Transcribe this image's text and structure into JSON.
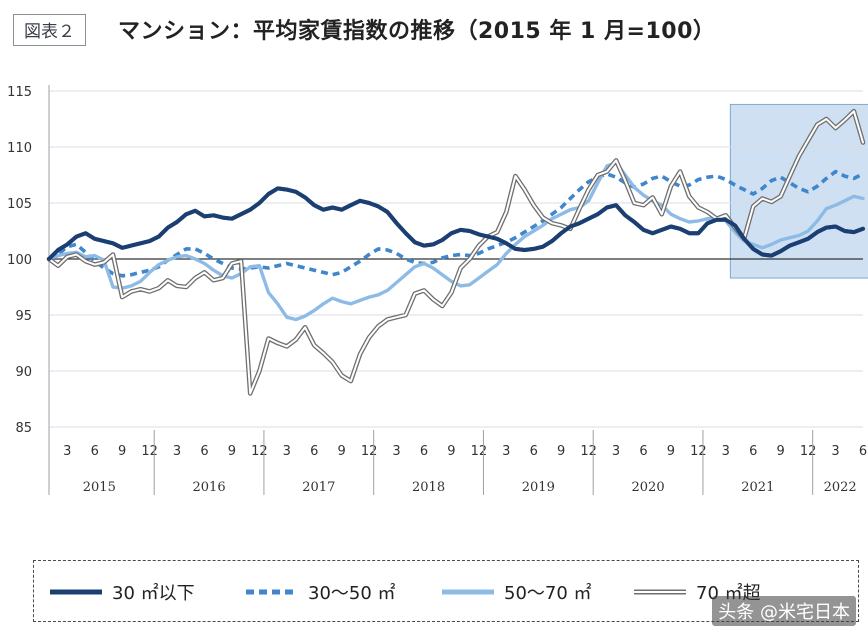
{
  "figure": {
    "label": "図表２",
    "title": "マンション：平均家賃指数の推移（2015 年 1 月=100）"
  },
  "watermark": "头条 @米宅日本",
  "chart_data": {
    "type": "line",
    "title": "マンション：平均家賃指数の推移（2015 年 1 月=100）",
    "xlabel": "",
    "ylabel": "",
    "ylim": [
      85,
      115
    ],
    "yticks": [
      "85",
      "90",
      "95",
      "100",
      "105",
      "110",
      "115"
    ],
    "baseline": 100,
    "x_start": "2015-01",
    "x_count": 90,
    "month_ticks": [
      {
        "index": 2,
        "label": "3"
      },
      {
        "index": 5,
        "label": "6"
      },
      {
        "index": 8,
        "label": "9"
      },
      {
        "index": 11,
        "label": "12"
      },
      {
        "index": 14,
        "label": "3"
      },
      {
        "index": 17,
        "label": "6"
      },
      {
        "index": 20,
        "label": "9"
      },
      {
        "index": 23,
        "label": "12"
      },
      {
        "index": 26,
        "label": "3"
      },
      {
        "index": 29,
        "label": "6"
      },
      {
        "index": 32,
        "label": "9"
      },
      {
        "index": 35,
        "label": "12"
      },
      {
        "index": 38,
        "label": "3"
      },
      {
        "index": 41,
        "label": "6"
      },
      {
        "index": 44,
        "label": "9"
      },
      {
        "index": 47,
        "label": "12"
      },
      {
        "index": 50,
        "label": "3"
      },
      {
        "index": 53,
        "label": "6"
      },
      {
        "index": 56,
        "label": "9"
      },
      {
        "index": 59,
        "label": "12"
      },
      {
        "index": 62,
        "label": "3"
      },
      {
        "index": 65,
        "label": "6"
      },
      {
        "index": 68,
        "label": "9"
      },
      {
        "index": 71,
        "label": "12"
      },
      {
        "index": 74,
        "label": "3"
      },
      {
        "index": 77,
        "label": "6"
      },
      {
        "index": 80,
        "label": "9"
      },
      {
        "index": 83,
        "label": "12"
      },
      {
        "index": 86,
        "label": "3"
      },
      {
        "index": 89,
        "label": "6"
      }
    ],
    "years": [
      {
        "label": "2015",
        "start": 0,
        "end": 11
      },
      {
        "label": "2016",
        "start": 12,
        "end": 23
      },
      {
        "label": "2017",
        "start": 24,
        "end": 35
      },
      {
        "label": "2018",
        "start": 36,
        "end": 47
      },
      {
        "label": "2019",
        "start": 48,
        "end": 59
      },
      {
        "label": "2020",
        "start": 60,
        "end": 71
      },
      {
        "label": "2021",
        "start": 72,
        "end": 83
      },
      {
        "label": "2022",
        "start": 84,
        "end": 89
      }
    ],
    "highlight_range": {
      "start": 75,
      "end": 90,
      "ymin": 98.3,
      "ymax": 113.8
    },
    "series": [
      {
        "name": "30 ㎡以下",
        "color": "#1b3f73",
        "style": "solid-thick",
        "values": [
          100.0,
          100.8,
          101.3,
          102.0,
          102.3,
          101.8,
          101.6,
          101.4,
          101.0,
          101.2,
          101.4,
          101.6,
          102.0,
          102.8,
          103.3,
          104.0,
          104.3,
          103.8,
          103.9,
          103.7,
          103.6,
          104.0,
          104.4,
          105.0,
          105.8,
          106.3,
          106.2,
          106.0,
          105.5,
          104.8,
          104.4,
          104.6,
          104.4,
          104.8,
          105.2,
          105.0,
          104.7,
          104.2,
          103.2,
          102.3,
          101.5,
          101.2,
          101.3,
          101.7,
          102.3,
          102.6,
          102.5,
          102.2,
          102.0,
          101.8,
          101.4,
          100.9,
          100.8,
          100.9,
          101.1,
          101.6,
          102.3,
          102.9,
          103.2,
          103.6,
          104.0,
          104.6,
          104.8,
          103.9,
          103.3,
          102.6,
          102.3,
          102.6,
          102.9,
          102.7,
          102.3,
          102.3,
          103.2,
          103.5,
          103.5,
          103.0,
          101.8,
          100.9,
          100.4,
          100.3,
          100.7,
          101.2,
          101.5,
          101.8,
          102.4,
          102.8,
          102.9,
          102.5,
          102.4,
          102.7
        ]
      },
      {
        "name": "30〜50 ㎡",
        "color": "#3f86cc",
        "style": "dashed",
        "values": [
          100.0,
          100.4,
          101.1,
          101.3,
          100.6,
          99.8,
          99.2,
          98.7,
          98.5,
          98.6,
          98.8,
          99.0,
          99.3,
          99.9,
          100.4,
          100.9,
          100.9,
          100.5,
          100.0,
          99.6,
          99.2,
          99.1,
          99.2,
          99.3,
          99.2,
          99.4,
          99.6,
          99.4,
          99.2,
          99.0,
          98.8,
          98.6,
          98.8,
          99.3,
          99.8,
          100.4,
          100.9,
          100.8,
          100.5,
          100.0,
          99.7,
          99.6,
          99.7,
          100.1,
          100.3,
          100.4,
          100.3,
          100.5,
          100.9,
          101.2,
          101.5,
          101.9,
          102.4,
          102.9,
          103.4,
          104.0,
          104.6,
          105.4,
          106.2,
          106.9,
          107.3,
          107.6,
          107.3,
          106.8,
          106.4,
          106.7,
          107.2,
          107.4,
          106.9,
          106.5,
          106.6,
          107.1,
          107.3,
          107.4,
          107.1,
          106.6,
          106.2,
          105.8,
          106.3,
          107.0,
          107.3,
          106.8,
          106.3,
          106.0,
          106.5,
          107.2,
          107.8,
          107.4,
          107.2,
          107.6
        ]
      },
      {
        "name": "50〜70 ㎡",
        "color": "#8dbbe6",
        "style": "solid-medium",
        "values": [
          100.0,
          100.3,
          100.5,
          100.6,
          100.2,
          100.3,
          99.9,
          97.5,
          97.4,
          97.6,
          98.0,
          98.8,
          99.5,
          99.9,
          100.2,
          100.3,
          100.0,
          99.6,
          99.0,
          98.5,
          98.3,
          98.7,
          99.3,
          99.4,
          97.0,
          96.0,
          94.8,
          94.6,
          94.9,
          95.4,
          96.0,
          96.5,
          96.2,
          96.0,
          96.3,
          96.6,
          96.8,
          97.2,
          97.9,
          98.6,
          99.3,
          99.6,
          99.2,
          98.6,
          98.0,
          97.6,
          97.7,
          98.3,
          98.9,
          99.5,
          100.5,
          101.3,
          102.0,
          102.5,
          103.0,
          103.6,
          104.0,
          104.4,
          104.6,
          105.2,
          106.8,
          108.3,
          108.6,
          107.5,
          106.4,
          105.7,
          105.2,
          104.8,
          104.0,
          103.6,
          103.3,
          103.4,
          103.6,
          103.7,
          103.4,
          102.4,
          101.6,
          101.3,
          101.0,
          101.3,
          101.7,
          101.9,
          102.1,
          102.5,
          103.4,
          104.5,
          104.8,
          105.2,
          105.6,
          105.4
        ]
      },
      {
        "name": "70 ㎡超",
        "color": "#6f6f6f",
        "style": "double",
        "values": [
          100.0,
          99.4,
          100.2,
          100.4,
          99.8,
          99.5,
          99.7,
          100.4,
          96.6,
          97.1,
          97.3,
          97.1,
          97.4,
          98.1,
          97.6,
          97.5,
          98.3,
          98.8,
          98.1,
          98.3,
          99.6,
          99.8,
          88.0,
          90.0,
          92.9,
          92.5,
          92.2,
          92.8,
          93.9,
          92.3,
          91.6,
          90.8,
          89.6,
          89.1,
          91.5,
          93.0,
          94.0,
          94.6,
          94.8,
          95.0,
          96.9,
          97.2,
          96.4,
          95.8,
          97.0,
          99.2,
          100.0,
          101.2,
          102.0,
          102.4,
          104.2,
          107.4,
          106.2,
          104.8,
          103.7,
          103.2,
          103.0,
          102.7,
          104.5,
          106.2,
          107.5,
          107.8,
          108.8,
          107.0,
          105.0,
          104.8,
          105.5,
          104.0,
          106.5,
          107.8,
          105.6,
          104.6,
          104.2,
          103.6,
          103.9,
          102.8,
          101.8,
          104.7,
          105.4,
          105.1,
          105.6,
          107.4,
          109.2,
          110.6,
          112.0,
          112.5,
          111.7,
          112.4,
          113.2,
          110.4
        ]
      }
    ]
  },
  "legend": [
    {
      "label": "30 ㎡以下"
    },
    {
      "label": "30〜50 ㎡"
    },
    {
      "label": "50〜70 ㎡"
    },
    {
      "label": "70 ㎡超"
    }
  ]
}
